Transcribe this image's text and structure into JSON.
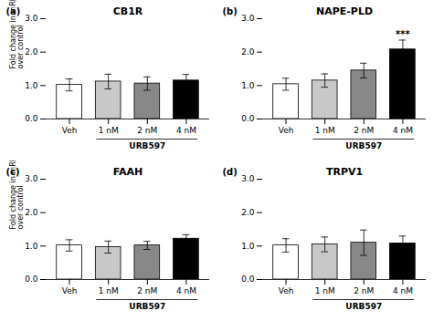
{
  "chart_data": [
    {
      "type": "bar",
      "title": "CB1R",
      "panel_label": "(a)",
      "categories": [
        "Veh",
        "1 nM",
        "2 nM",
        "4 nM"
      ],
      "values": [
        1.02,
        1.12,
        1.06,
        1.15
      ],
      "errors": [
        0.18,
        0.22,
        0.2,
        0.18
      ],
      "colors": [
        "#ffffff",
        "#c8c8c8",
        "#888888",
        "#000000"
      ],
      "ylabel": "Fold change in mRNA\nover control",
      "xlabel": "URB597",
      "ylim": [
        0,
        3
      ],
      "yticks": [
        0,
        1,
        2,
        3
      ],
      "grid": false
    },
    {
      "type": "bar",
      "title": "NAPE-PLD",
      "panel_label": "(b)",
      "categories": [
        "Veh",
        "1 nM",
        "2 nM",
        "4 nM"
      ],
      "values": [
        1.04,
        1.15,
        1.45,
        2.08
      ],
      "errors": [
        0.18,
        0.2,
        0.22,
        0.28
      ],
      "colors": [
        "#ffffff",
        "#c8c8c8",
        "#888888",
        "#000000"
      ],
      "xlabel": "URB597",
      "ylim": [
        0,
        3
      ],
      "yticks": [
        0,
        1,
        2,
        3
      ],
      "grid": false,
      "annotations": [
        {
          "text": "***",
          "category": "4 nM"
        }
      ]
    },
    {
      "type": "bar",
      "title": "FAAH",
      "panel_label": "(c)",
      "categories": [
        "Veh",
        "1 nM",
        "2 nM",
        "4 nM"
      ],
      "values": [
        1.02,
        0.97,
        1.02,
        1.22
      ],
      "errors": [
        0.17,
        0.18,
        0.12,
        0.12
      ],
      "colors": [
        "#ffffff",
        "#c8c8c8",
        "#888888",
        "#000000"
      ],
      "ylabel": "Fold change in mRNA\nover control",
      "xlabel": "URB597",
      "ylim": [
        0,
        3
      ],
      "yticks": [
        0,
        1,
        2,
        3
      ],
      "grid": false
    },
    {
      "type": "bar",
      "title": "TRPV1",
      "panel_label": "(d)",
      "categories": [
        "Veh",
        "1 nM",
        "2 nM",
        "4 nM"
      ],
      "values": [
        1.02,
        1.05,
        1.1,
        1.08
      ],
      "errors": [
        0.2,
        0.22,
        0.38,
        0.22
      ],
      "colors": [
        "#ffffff",
        "#c8c8c8",
        "#888888",
        "#000000"
      ],
      "xlabel": "URB597",
      "ylim": [
        0,
        3
      ],
      "yticks": [
        0,
        1,
        2,
        3
      ],
      "grid": false
    }
  ]
}
